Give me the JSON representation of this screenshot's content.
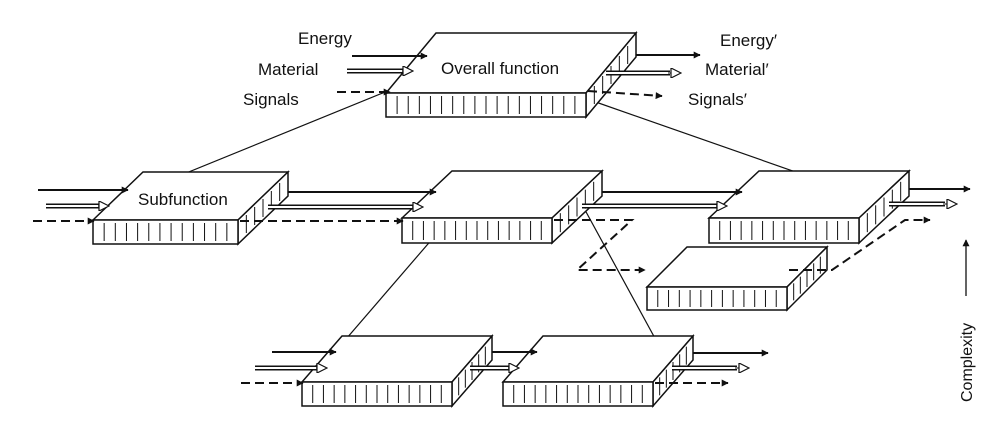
{
  "overall": {
    "title": "Overall function",
    "inputs": [
      "Energy",
      "Material",
      "Signals"
    ],
    "outputs": [
      "Energy′",
      "Material′",
      "Signals′"
    ]
  },
  "subfunction_label": "Subfunction",
  "axis": {
    "label": "Complexity"
  },
  "legend": {
    "energy_flow": "solid-arrow",
    "material_flow": "hollow-double-arrow",
    "signal_flow": "dashed-arrow"
  },
  "colors": {
    "stroke": "#111111",
    "face": "#ffffff"
  }
}
